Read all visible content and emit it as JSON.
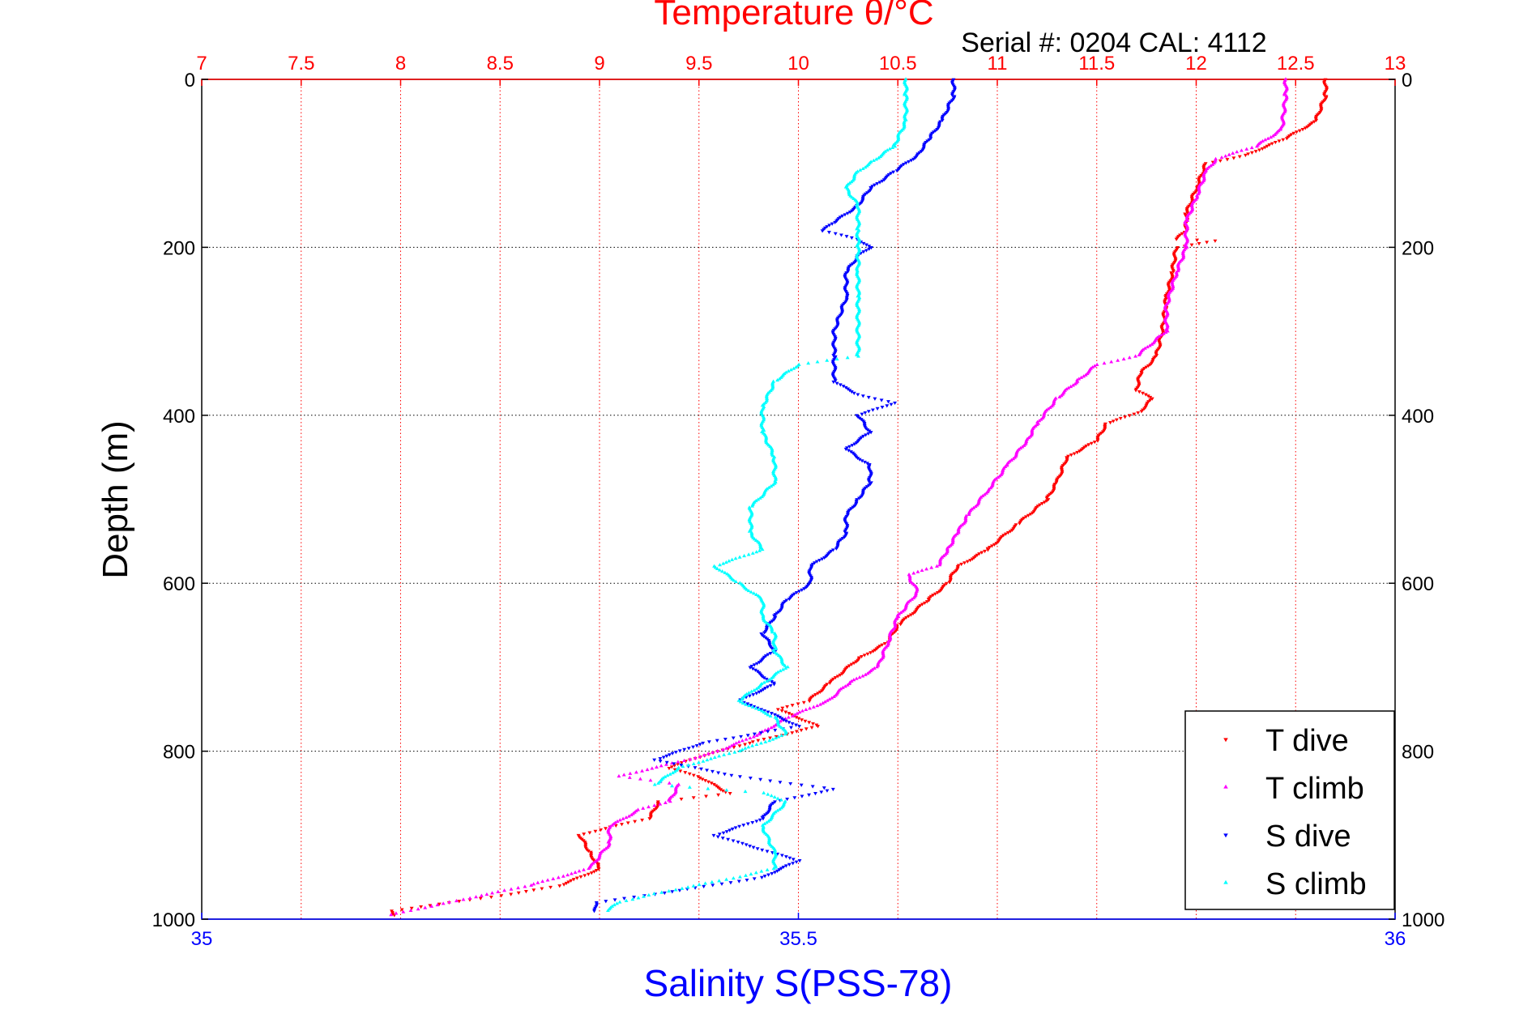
{
  "chart_data": {
    "type": "scatter",
    "title": "Temperature θ/°C",
    "subtitle": "Serial #: 0204  CAL: 4112",
    "xlabel": "Salinity S(PSS-78)",
    "ylabel": "Depth (m)",
    "salinity_axis": {
      "range": [
        35,
        36
      ],
      "ticks": [
        "35",
        "35.5",
        "36"
      ]
    },
    "temperature_axis": {
      "range": [
        7,
        13
      ],
      "ticks": [
        "7",
        "7.5",
        "8",
        "8.5",
        "9",
        "9.5",
        "10",
        "10.5",
        "11",
        "11.5",
        "12",
        "12.5",
        "13"
      ]
    },
    "depth_axis": {
      "range": [
        0,
        1000
      ],
      "reversed": true,
      "ticks": [
        "0",
        "200",
        "400",
        "600",
        "800",
        "1000"
      ]
    },
    "grid": true,
    "legend": {
      "placement": "bottom-right",
      "entries": [
        "T dive",
        "T climb",
        "S dive",
        "S climb"
      ]
    },
    "series": [
      {
        "name": "T dive",
        "variable": "temperature",
        "color": "#ff0000",
        "marker": "triangle-down",
        "points": [
          [
            12.65,
            0
          ],
          [
            12.65,
            20
          ],
          [
            12.6,
            50
          ],
          [
            12.45,
            70
          ],
          [
            12.25,
            90
          ],
          [
            12.05,
            100
          ],
          [
            12.0,
            130
          ],
          [
            11.95,
            160
          ],
          [
            11.95,
            180
          ],
          [
            11.9,
            190
          ],
          [
            12.1,
            192
          ],
          [
            11.9,
            200
          ],
          [
            11.88,
            230
          ],
          [
            11.85,
            260
          ],
          [
            11.83,
            300
          ],
          [
            11.8,
            330
          ],
          [
            11.72,
            350
          ],
          [
            11.7,
            370
          ],
          [
            11.78,
            380
          ],
          [
            11.72,
            395
          ],
          [
            11.55,
            410
          ],
          [
            11.5,
            430
          ],
          [
            11.35,
            450
          ],
          [
            11.3,
            480
          ],
          [
            11.25,
            500
          ],
          [
            11.1,
            530
          ],
          [
            10.95,
            560
          ],
          [
            10.8,
            580
          ],
          [
            10.75,
            600
          ],
          [
            10.65,
            620
          ],
          [
            10.5,
            650
          ],
          [
            10.45,
            670
          ],
          [
            10.3,
            690
          ],
          [
            10.15,
            720
          ],
          [
            10.05,
            740
          ],
          [
            9.9,
            750
          ],
          [
            10.1,
            770
          ],
          [
            9.75,
            790
          ],
          [
            9.6,
            800
          ],
          [
            9.45,
            810
          ],
          [
            9.35,
            820
          ],
          [
            9.5,
            830
          ],
          [
            9.65,
            850
          ],
          [
            9.3,
            860
          ],
          [
            9.25,
            880
          ],
          [
            9.05,
            890
          ],
          [
            8.9,
            900
          ],
          [
            8.95,
            920
          ],
          [
            9.0,
            940
          ],
          [
            8.8,
            960
          ],
          [
            8.55,
            970
          ],
          [
            8.25,
            980
          ],
          [
            7.95,
            990
          ],
          [
            7.97,
            995
          ]
        ]
      },
      {
        "name": "T climb",
        "variable": "temperature",
        "color": "#ff00ff",
        "marker": "triangle-up",
        "points": [
          [
            12.45,
            0
          ],
          [
            12.45,
            20
          ],
          [
            12.43,
            60
          ],
          [
            12.3,
            80
          ],
          [
            12.1,
            95
          ],
          [
            12.05,
            110
          ],
          [
            12.0,
            140
          ],
          [
            11.95,
            170
          ],
          [
            11.95,
            200
          ],
          [
            11.9,
            230
          ],
          [
            11.85,
            270
          ],
          [
            11.85,
            300
          ],
          [
            11.7,
            330
          ],
          [
            11.5,
            340
          ],
          [
            11.4,
            360
          ],
          [
            11.3,
            380
          ],
          [
            11.2,
            410
          ],
          [
            11.15,
            430
          ],
          [
            11.05,
            460
          ],
          [
            10.95,
            490
          ],
          [
            10.85,
            520
          ],
          [
            10.8,
            540
          ],
          [
            10.75,
            560
          ],
          [
            10.7,
            580
          ],
          [
            10.55,
            590
          ],
          [
            10.6,
            610
          ],
          [
            10.5,
            640
          ],
          [
            10.45,
            670
          ],
          [
            10.4,
            700
          ],
          [
            10.25,
            720
          ],
          [
            10.15,
            740
          ],
          [
            9.95,
            760
          ],
          [
            9.8,
            780
          ],
          [
            9.6,
            800
          ],
          [
            9.45,
            810
          ],
          [
            9.1,
            830
          ],
          [
            9.4,
            840
          ],
          [
            9.35,
            860
          ],
          [
            9.2,
            870
          ],
          [
            9.05,
            890
          ],
          [
            9.05,
            910
          ],
          [
            8.95,
            940
          ],
          [
            8.65,
            960
          ],
          [
            8.25,
            980
          ],
          [
            7.95,
            995
          ]
        ]
      },
      {
        "name": "S dive",
        "variable": "salinity",
        "color": "#0000ff",
        "marker": "triangle-down",
        "points": [
          [
            35.63,
            0
          ],
          [
            35.63,
            20
          ],
          [
            35.62,
            50
          ],
          [
            35.61,
            70
          ],
          [
            35.6,
            90
          ],
          [
            35.58,
            110
          ],
          [
            35.56,
            130
          ],
          [
            35.55,
            150
          ],
          [
            35.53,
            170
          ],
          [
            35.52,
            180
          ],
          [
            35.55,
            190
          ],
          [
            35.56,
            200
          ],
          [
            35.55,
            210
          ],
          [
            35.54,
            230
          ],
          [
            35.54,
            260
          ],
          [
            35.53,
            300
          ],
          [
            35.53,
            330
          ],
          [
            35.53,
            360
          ],
          [
            35.55,
            375
          ],
          [
            35.58,
            385
          ],
          [
            35.55,
            400
          ],
          [
            35.56,
            420
          ],
          [
            35.54,
            440
          ],
          [
            35.56,
            460
          ],
          [
            35.56,
            480
          ],
          [
            35.55,
            500
          ],
          [
            35.54,
            520
          ],
          [
            35.54,
            540
          ],
          [
            35.53,
            560
          ],
          [
            35.51,
            580
          ],
          [
            35.51,
            600
          ],
          [
            35.49,
            620
          ],
          [
            35.48,
            640
          ],
          [
            35.47,
            660
          ],
          [
            35.48,
            680
          ],
          [
            35.46,
            700
          ],
          [
            35.48,
            720
          ],
          [
            35.45,
            740
          ],
          [
            35.47,
            750
          ],
          [
            35.5,
            770
          ],
          [
            35.42,
            790
          ],
          [
            35.38,
            810
          ],
          [
            35.45,
            830
          ],
          [
            35.53,
            845
          ],
          [
            35.48,
            860
          ],
          [
            35.47,
            880
          ],
          [
            35.43,
            900
          ],
          [
            35.5,
            930
          ],
          [
            35.47,
            950
          ],
          [
            35.38,
            970
          ],
          [
            35.33,
            980
          ],
          [
            35.33,
            990
          ]
        ]
      },
      {
        "name": "S climb",
        "variable": "salinity",
        "color": "#00ffff",
        "marker": "triangle-up",
        "points": [
          [
            35.59,
            0
          ],
          [
            35.59,
            20
          ],
          [
            35.59,
            50
          ],
          [
            35.58,
            80
          ],
          [
            35.56,
            100
          ],
          [
            35.55,
            110
          ],
          [
            35.54,
            130
          ],
          [
            35.55,
            150
          ],
          [
            35.55,
            180
          ],
          [
            35.55,
            200
          ],
          [
            35.55,
            230
          ],
          [
            35.55,
            260
          ],
          [
            35.55,
            300
          ],
          [
            35.55,
            330
          ],
          [
            35.5,
            340
          ],
          [
            35.48,
            360
          ],
          [
            35.47,
            390
          ],
          [
            35.47,
            420
          ],
          [
            35.48,
            450
          ],
          [
            35.48,
            480
          ],
          [
            35.46,
            510
          ],
          [
            35.46,
            540
          ],
          [
            35.47,
            560
          ],
          [
            35.43,
            580
          ],
          [
            35.45,
            600
          ],
          [
            35.47,
            620
          ],
          [
            35.47,
            640
          ],
          [
            35.48,
            660
          ],
          [
            35.48,
            680
          ],
          [
            35.49,
            700
          ],
          [
            35.47,
            720
          ],
          [
            35.45,
            740
          ],
          [
            35.48,
            760
          ],
          [
            35.49,
            780
          ],
          [
            35.45,
            800
          ],
          [
            35.4,
            820
          ],
          [
            35.38,
            840
          ],
          [
            35.47,
            850
          ],
          [
            35.49,
            860
          ],
          [
            35.47,
            890
          ],
          [
            35.48,
            920
          ],
          [
            35.48,
            940
          ],
          [
            35.45,
            950
          ],
          [
            35.38,
            970
          ],
          [
            35.35,
            980
          ],
          [
            35.34,
            990
          ]
        ]
      }
    ]
  }
}
